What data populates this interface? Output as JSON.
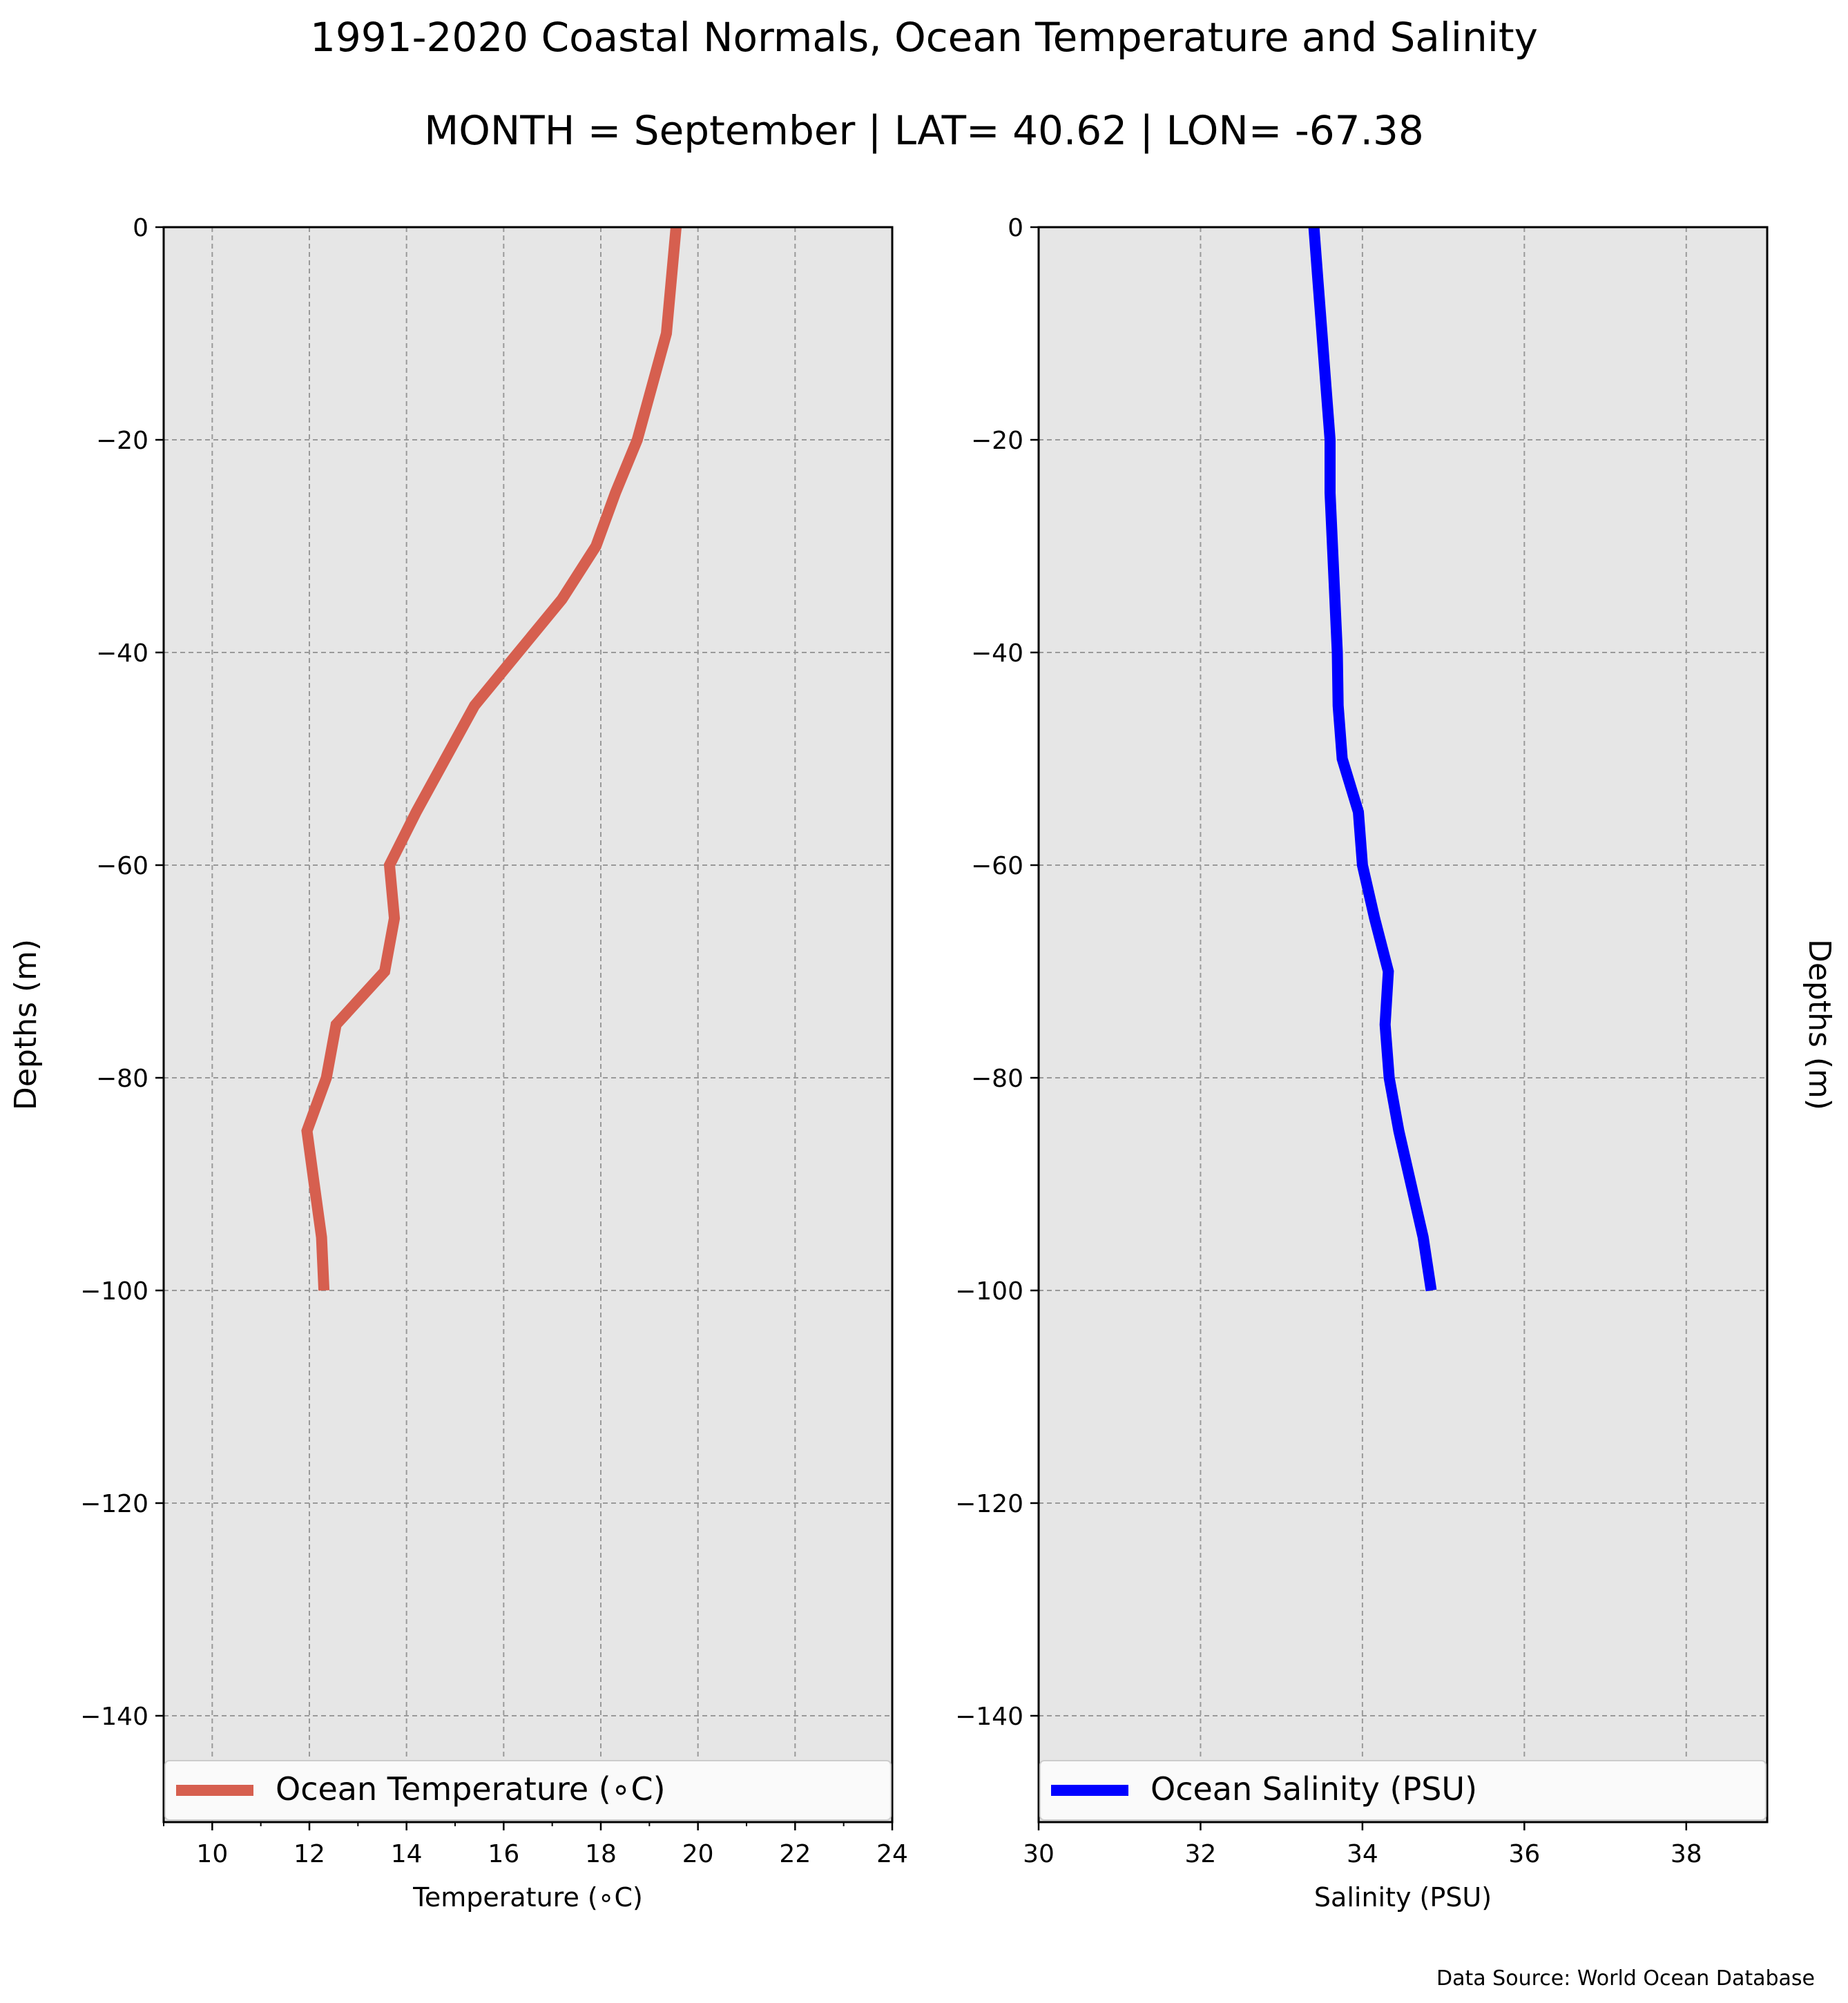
{
  "figure": {
    "title": "1991-2020 Coastal Normals, Ocean Temperature and Salinity",
    "subtitle": "MONTH = September | LAT= 40.62 | LON= -67.38",
    "source": "Data Source: World Ocean Database"
  },
  "colors": {
    "panel_bg": "#e6e6e6",
    "grid": "#9a9a9a",
    "temperature": "#d65f4f",
    "salinity": "#0000ff"
  },
  "chart_data": [
    {
      "type": "line",
      "xlabel": "Temperature (∘C)",
      "ylabel": "Depths (m)",
      "xlim": [
        9,
        24
      ],
      "ylim": [
        -150,
        0
      ],
      "xticks": [
        10,
        12,
        14,
        16,
        18,
        20,
        22,
        24
      ],
      "yticks": [
        0,
        -20,
        -40,
        -60,
        -80,
        -100,
        -120,
        -140
      ],
      "grid": true,
      "legend_position": "bottom",
      "series": [
        {
          "name": "Ocean Temperature (∘C)",
          "x": [
            19.55,
            19.45,
            19.35,
            19.05,
            18.75,
            18.3,
            17.9,
            17.2,
            16.3,
            15.4,
            14.8,
            14.2,
            13.65,
            13.75,
            13.55,
            12.55,
            12.35,
            11.95,
            12.1,
            12.25,
            12.3
          ],
          "y": [
            0,
            -5,
            -10,
            -15,
            -20,
            -25,
            -30,
            -35,
            -40,
            -45,
            -50,
            -55,
            -60,
            -65,
            -70,
            -75,
            -80,
            -85,
            -90,
            -95,
            -100
          ]
        }
      ]
    },
    {
      "type": "line",
      "xlabel": "Salinity (PSU)",
      "ylabel": "Depths (m)",
      "xlim": [
        30,
        39
      ],
      "ylim": [
        -150,
        0
      ],
      "xticks": [
        30,
        32,
        34,
        36,
        38
      ],
      "yticks": [
        0,
        -20,
        -40,
        -60,
        -80,
        -100,
        -120,
        -140
      ],
      "grid": true,
      "legend_position": "bottom",
      "series": [
        {
          "name": "Ocean Salinity (PSU)",
          "x": [
            33.4,
            33.45,
            33.5,
            33.55,
            33.6,
            33.6,
            33.63,
            33.66,
            33.69,
            33.7,
            33.75,
            33.95,
            34.0,
            34.15,
            34.32,
            34.28,
            34.33,
            34.45,
            34.6,
            34.75,
            34.85
          ],
          "y": [
            0,
            -5,
            -10,
            -15,
            -20,
            -25,
            -30,
            -35,
            -40,
            -45,
            -50,
            -55,
            -60,
            -65,
            -70,
            -75,
            -80,
            -85,
            -90,
            -95,
            -100
          ]
        }
      ]
    }
  ]
}
